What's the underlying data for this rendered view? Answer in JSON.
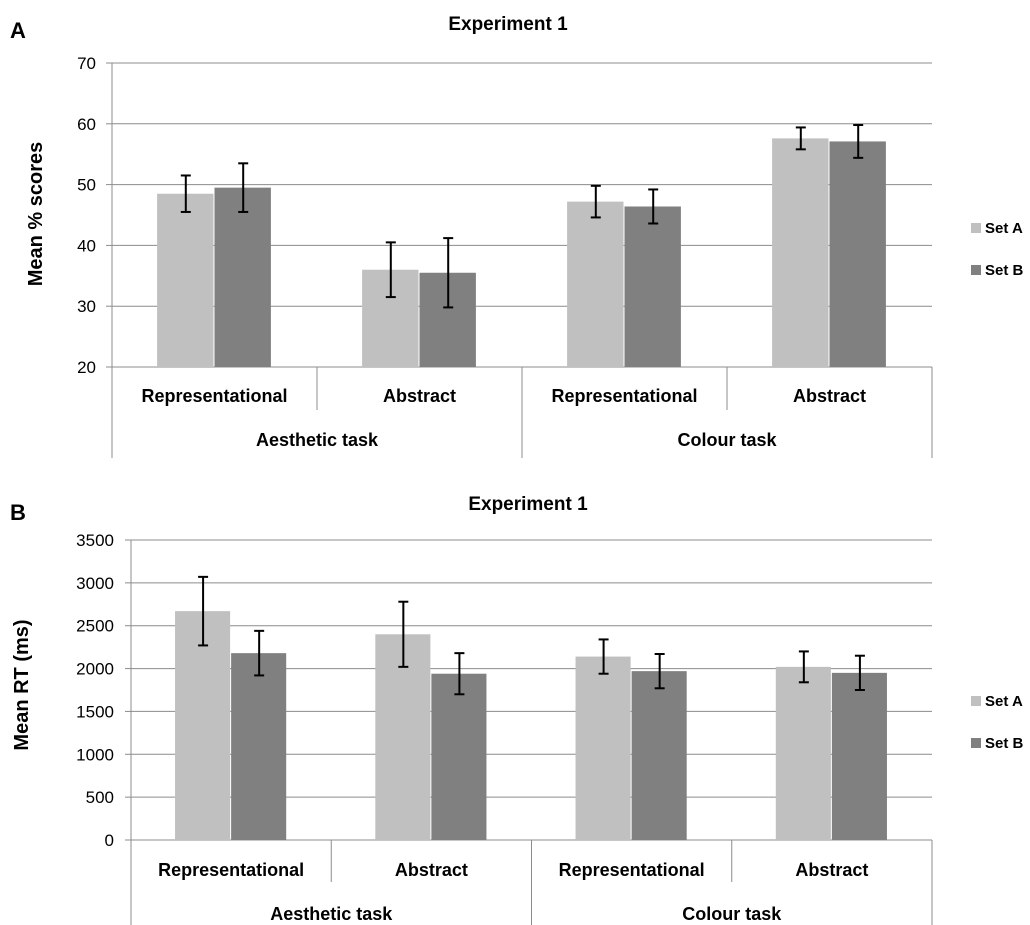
{
  "chart_data": [
    {
      "panel": "A",
      "type": "bar",
      "title": "Experiment  1",
      "ylabel": "Mean % scores",
      "xlabel": "",
      "ylim": [
        20,
        70
      ],
      "yticks": [
        20,
        30,
        40,
        50,
        60,
        70
      ],
      "grid": true,
      "legend_position": "right",
      "categories": [
        "Representational",
        "Abstract",
        "Representational",
        "Abstract"
      ],
      "groups": [
        {
          "label": "Aesthetic task",
          "categories": [
            0,
            1
          ]
        },
        {
          "label": "Colour task",
          "categories": [
            2,
            3
          ]
        }
      ],
      "series": [
        {
          "name": "Set A",
          "color": "#c0c0c0",
          "values": [
            48.5,
            36.0,
            47.2,
            57.6
          ],
          "errors": [
            3.0,
            4.5,
            2.6,
            1.8
          ]
        },
        {
          "name": "Set B",
          "color": "#808080",
          "values": [
            49.5,
            35.5,
            46.4,
            57.1
          ],
          "errors": [
            4.0,
            5.7,
            2.8,
            2.7
          ]
        }
      ]
    },
    {
      "panel": "B",
      "type": "bar",
      "title": "Experiment 1",
      "ylabel": "Mean RT (ms)",
      "xlabel": "",
      "ylim": [
        0,
        3500
      ],
      "yticks": [
        0,
        500,
        1000,
        1500,
        2000,
        2500,
        3000,
        3500
      ],
      "grid": true,
      "legend_position": "right",
      "categories": [
        "Representational",
        "Abstract",
        "Representational",
        "Abstract"
      ],
      "groups": [
        {
          "label": "Aesthetic task",
          "categories": [
            0,
            1
          ]
        },
        {
          "label": "Colour task",
          "categories": [
            2,
            3
          ]
        }
      ],
      "series": [
        {
          "name": "Set A",
          "color": "#c0c0c0",
          "values": [
            2670,
            2400,
            2140,
            2020
          ],
          "errors": [
            400,
            380,
            200,
            180
          ]
        },
        {
          "name": "Set B",
          "color": "#808080",
          "values": [
            2180,
            1940,
            1970,
            1950
          ],
          "errors": [
            260,
            240,
            200,
            200
          ]
        }
      ]
    }
  ]
}
